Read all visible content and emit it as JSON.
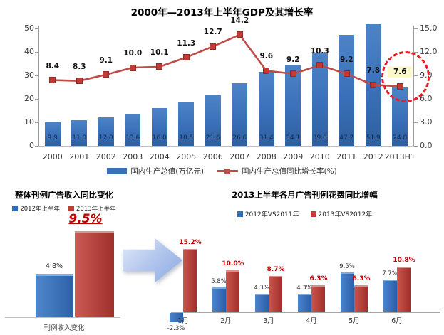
{
  "page": {
    "background": "#ffffff"
  },
  "chart_data": [
    {
      "type": "combo-bar-line",
      "title": "2000年—2013年上半年GDP及其增长率",
      "categories": [
        "2000",
        "2001",
        "2002",
        "2003",
        "2004",
        "2005",
        "2006",
        "2007",
        "2008",
        "2009",
        "2010",
        "2011",
        "2012",
        "2013H1"
      ],
      "series": [
        {
          "name": "国内生产总值(万亿元)",
          "type": "bar",
          "color": "#3a70b9",
          "values": [
            9.9,
            11.0,
            12.0,
            13.6,
            16.0,
            18.5,
            21.6,
            26.6,
            31.4,
            34.1,
            39.8,
            47.2,
            51.9,
            24.8
          ]
        },
        {
          "name": "国内生产总值同比增长率(%)",
          "type": "line",
          "color": "#be4b48",
          "values": [
            8.4,
            8.3,
            9.1,
            10.0,
            10.1,
            11.3,
            12.7,
            14.2,
            9.6,
            9.2,
            10.3,
            9.2,
            7.8,
            7.6
          ]
        }
      ],
      "left_axis_ticks": [
        0,
        10,
        20,
        30,
        40,
        50
      ],
      "right_axis_ticks": [
        "0.0",
        "3.0",
        "6.0",
        "9.0",
        "12.0",
        "15.0"
      ],
      "left_axis_range": [
        0,
        50
      ],
      "right_axis_range": [
        0,
        15
      ],
      "legend_position": "bottom",
      "grid": false,
      "highlight": {
        "category": "2013H1",
        "value_label": "7.6",
        "label_background": "#fbf8ce",
        "circle_color": "#ec1c24",
        "circle_style": "dashed"
      }
    },
    {
      "type": "bar",
      "title": "整体刊例广告收入同比变化",
      "categories": [
        "刊例收入变化"
      ],
      "series": [
        {
          "name": "2012年上半年",
          "color": "#2f6db5",
          "values": [
            4.8
          ]
        },
        {
          "name": "2013年上半年",
          "color": "#be3b36",
          "values": [
            9.5
          ]
        }
      ],
      "annotation": "9.5%",
      "value_label": "4.8%",
      "legend_position": "top",
      "grid": false
    },
    {
      "type": "grouped-bar",
      "title": "2013上半年各月广告刊例花费同比增幅",
      "categories": [
        "1月",
        "2月",
        "3月",
        "4月",
        "5月",
        "6月"
      ],
      "series": [
        {
          "name": "2012年VS2011年",
          "color": "#2f6db5",
          "values": [
            -2.3,
            5.8,
            4.3,
            4.3,
            9.5,
            7.7
          ]
        },
        {
          "name": "2013年VS2012年",
          "color": "#be3b36",
          "values": [
            15.2,
            10.0,
            8.7,
            6.3,
            6.3,
            10.8
          ]
        }
      ],
      "legend_position": "top",
      "grid": false
    }
  ],
  "decorations": {
    "flow_arrow": {
      "direction": "right",
      "color_start": "#e4ecfa",
      "color_end": "#88a9e2"
    }
  }
}
